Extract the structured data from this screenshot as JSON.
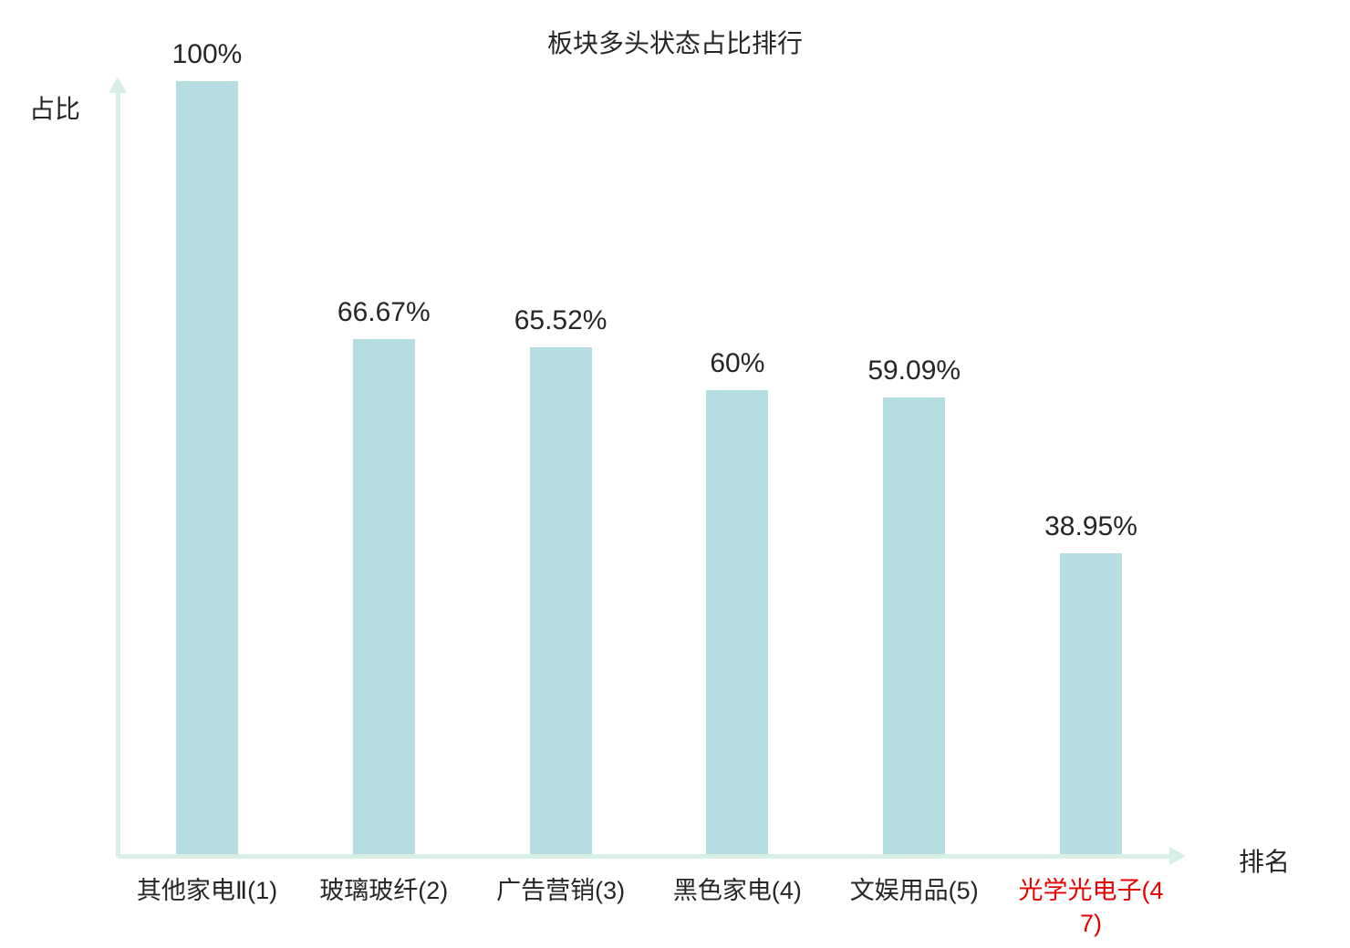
{
  "colors": {
    "bar": "#b6dde2",
    "axis": "#d8efe6",
    "text": "#262626",
    "highlight": "#e60000"
  },
  "chart_data": {
    "type": "bar",
    "title": "板块多头状态占比排行",
    "xlabel": "排名",
    "ylabel": "占比",
    "categories": [
      "其他家电Ⅱ(1)",
      "玻璃玻纤(2)",
      "广告营销(3)",
      "黑色家电(4)",
      "文娱用品(5)",
      "光学光电子(47)"
    ],
    "values": [
      100,
      66.67,
      65.52,
      60,
      59.09,
      38.95
    ],
    "value_labels": [
      "100%",
      "66.67%",
      "65.52%",
      "60%",
      "59.09%",
      "38.95%"
    ],
    "ylim": [
      0,
      100
    ],
    "grid": false,
    "legend": false,
    "highlight_index": 5
  }
}
